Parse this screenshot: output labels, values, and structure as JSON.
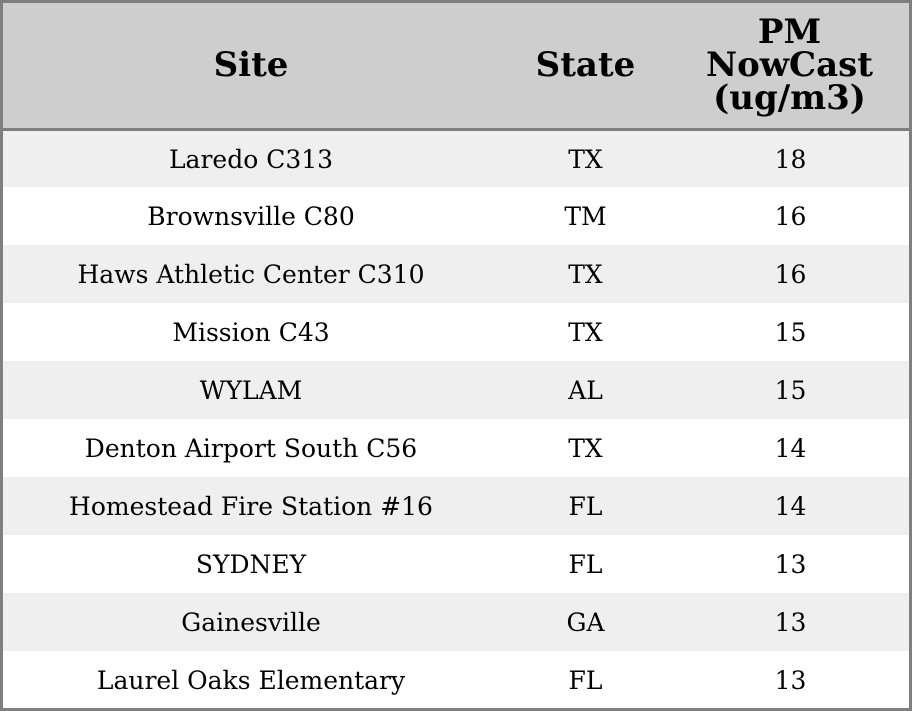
{
  "table": {
    "headers": {
      "site": "Site",
      "state": "State",
      "pm_line1": "PM",
      "pm_line2": "NowCast",
      "pm_line3": "(ug/m3)"
    },
    "rows": [
      {
        "site": "Laredo C313",
        "state": "TX",
        "pm": "18"
      },
      {
        "site": "Brownsville C80",
        "state": "TM",
        "pm": "16"
      },
      {
        "site": "Haws Athletic Center C310",
        "state": "TX",
        "pm": "16"
      },
      {
        "site": "Mission C43",
        "state": "TX",
        "pm": "15"
      },
      {
        "site": "WYLAM",
        "state": "AL",
        "pm": "15"
      },
      {
        "site": "Denton Airport South C56",
        "state": "TX",
        "pm": "14"
      },
      {
        "site": "Homestead Fire Station #16",
        "state": "FL",
        "pm": "14"
      },
      {
        "site": "SYDNEY",
        "state": "FL",
        "pm": "13"
      },
      {
        "site": "Gainesville",
        "state": "GA",
        "pm": "13"
      },
      {
        "site": "Laurel Oaks Elementary",
        "state": "FL",
        "pm": "13"
      }
    ]
  },
  "colors": {
    "header_bg": "#cecece",
    "row_alt_bg": "#efefef",
    "row_bg": "#ffffff",
    "border": "#7f7f7f"
  }
}
